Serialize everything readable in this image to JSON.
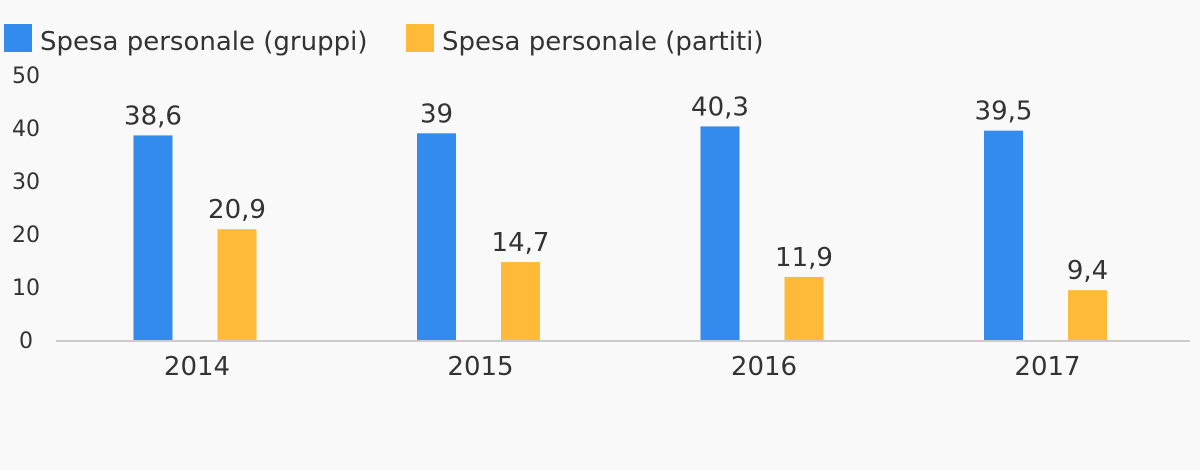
{
  "chart_data": {
    "type": "bar",
    "title": "",
    "xlabel": "",
    "ylabel": "",
    "categories": [
      "2014",
      "2015",
      "2016",
      "2017"
    ],
    "series": [
      {
        "name": "Spesa personale (gruppi)",
        "color": "#338ced",
        "values": [
          38.6,
          39,
          40.3,
          39.5
        ],
        "labels": [
          "38,6",
          "39",
          "40,3",
          "39,5"
        ]
      },
      {
        "name": "Spesa personale (partiti)",
        "color": "#ffba38",
        "values": [
          20.9,
          14.7,
          11.9,
          9.4
        ],
        "labels": [
          "20,9",
          "14,7",
          "11,9",
          "9,4"
        ]
      }
    ],
    "ylim": [
      0,
      50
    ],
    "yticks": [
      0,
      10,
      20,
      30,
      40,
      50
    ],
    "grid": false,
    "legend_position": "top-left",
    "axis_color": "#cccccc",
    "background": "#f9f9f9"
  }
}
